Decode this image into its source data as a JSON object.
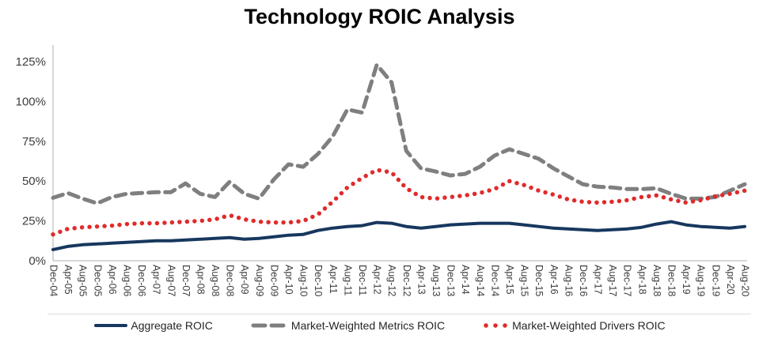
{
  "title": "Technology ROIC Analysis",
  "legend": {
    "items": [
      {
        "label": "Aggregate ROIC",
        "style": "solid",
        "color": "#17375e"
      },
      {
        "label": "Market-Weighted Metrics ROIC",
        "style": "dashed",
        "color": "#7f7f7f"
      },
      {
        "label": "Market-Weighted Drivers ROIC",
        "style": "dotted",
        "color": "#e02b2b"
      }
    ]
  },
  "chart_data": {
    "type": "line",
    "title": "Technology ROIC Analysis",
    "unit": "%",
    "ylim": [
      0,
      135
    ],
    "grid": false,
    "legend_position": "bottom",
    "y_tick_labels": [
      "0%",
      "25%",
      "50%",
      "75%",
      "100%",
      "125%"
    ],
    "y_tick_values": [
      0,
      25,
      50,
      75,
      100,
      125
    ],
    "categories": [
      "Dec-04",
      "Apr-05",
      "Aug-05",
      "Dec-05",
      "Apr-06",
      "Aug-06",
      "Dec-06",
      "Apr-07",
      "Aug-07",
      "Dec-07",
      "Apr-08",
      "Aug-08",
      "Dec-08",
      "Apr-09",
      "Aug-09",
      "Dec-09",
      "Apr-10",
      "Aug-10",
      "Dec-10",
      "Apr-11",
      "Aug-11",
      "Dec-11",
      "Apr-12",
      "Aug-12",
      "Dec-12",
      "Apr-13",
      "Aug-13",
      "Dec-13",
      "Apr-14",
      "Aug-14",
      "Dec-14",
      "Apr-15",
      "Aug-15",
      "Dec-15",
      "Apr-16",
      "Aug-16",
      "Dec-16",
      "Apr-17",
      "Aug-17",
      "Dec-17",
      "Apr-18",
      "Aug-18",
      "Dec-18",
      "Apr-19",
      "Aug-19",
      "Dec-19",
      "Apr-20",
      "Aug-20"
    ],
    "series": [
      {
        "name": "Aggregate ROIC",
        "style": "solid",
        "color": "#17375e",
        "values": [
          7,
          9,
          10,
          10.5,
          11,
          11.5,
          12,
          12.5,
          12.5,
          13,
          13.5,
          14,
          14.5,
          13.5,
          14,
          15,
          16,
          16.5,
          19,
          20.5,
          21.5,
          22,
          24,
          23.5,
          21.5,
          20.5,
          21.5,
          22.5,
          23,
          23.5,
          23.5,
          23.5,
          22.5,
          21.5,
          20.5,
          20,
          19.5,
          19,
          19.5,
          20,
          21,
          23,
          24.5,
          22.5,
          21.5,
          21,
          20.5,
          21.5
        ]
      },
      {
        "name": "Market-Weighted Metrics ROIC",
        "style": "dashed",
        "color": "#7f7f7f",
        "values": [
          39.5,
          42.5,
          39,
          36,
          40,
          42,
          42.5,
          43,
          43,
          48.5,
          42,
          40,
          49.5,
          42,
          39,
          51,
          60.5,
          59,
          67,
          78,
          95,
          93,
          123,
          112,
          69,
          58,
          56,
          53.5,
          54.5,
          59,
          66,
          70,
          67,
          64,
          58,
          53,
          48,
          46.5,
          46,
          45,
          45,
          45.5,
          42,
          39,
          39,
          40,
          44,
          48
        ]
      },
      {
        "name": "Market-Weighted Drivers ROIC",
        "style": "dotted",
        "color": "#e02b2b",
        "values": [
          16.5,
          20,
          21,
          21.5,
          22,
          23,
          23.5,
          23.5,
          24,
          24.5,
          25,
          26,
          28.5,
          26,
          24.5,
          24,
          24,
          25,
          29,
          37,
          46,
          52,
          57,
          55.5,
          45.5,
          40,
          39,
          40,
          41,
          42.5,
          45,
          50,
          47.5,
          44,
          41.5,
          38.5,
          37,
          36.5,
          37,
          38,
          40,
          41,
          38.5,
          36.5,
          38,
          40.5,
          42,
          44
        ]
      }
    ]
  }
}
